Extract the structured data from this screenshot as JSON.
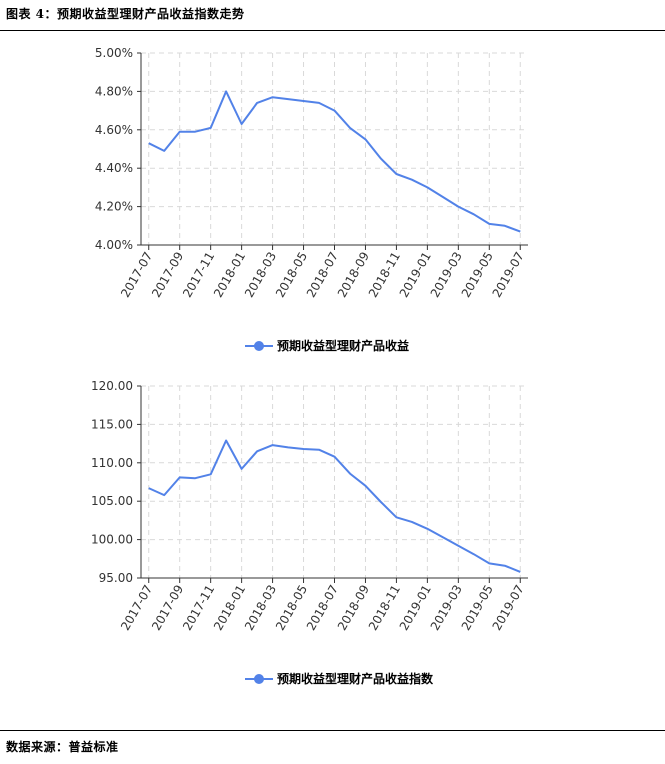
{
  "header": {
    "title": "图表 4：预期收益型理财产品收益指数走势"
  },
  "footer": {
    "source": "数据来源：普益标准"
  },
  "colors": {
    "series": "#5282E8",
    "grid": "#d9d9d9",
    "axis": "#333333"
  },
  "chart_data": [
    {
      "type": "line",
      "x": [
        "2017-07",
        "2017-08",
        "2017-09",
        "2017-10",
        "2017-11",
        "2017-12",
        "2018-01",
        "2018-02",
        "2018-03",
        "2018-04",
        "2018-05",
        "2018-06",
        "2018-07",
        "2018-08",
        "2018-09",
        "2018-10",
        "2018-11",
        "2018-12",
        "2019-01",
        "2019-02",
        "2019-03",
        "2019-04",
        "2019-05",
        "2019-06",
        "2019-07"
      ],
      "xticks": [
        "2017-07",
        "2017-09",
        "2017-11",
        "2018-01",
        "2018-03",
        "2018-05",
        "2018-07",
        "2018-09",
        "2018-11",
        "2019-01",
        "2019-03",
        "2019-05",
        "2019-07"
      ],
      "yticks": [
        "4.00%",
        "4.20%",
        "4.40%",
        "4.60%",
        "4.80%",
        "5.00%"
      ],
      "ylim": [
        4.0,
        5.0
      ],
      "grid": true,
      "legend_position": "bottom-center",
      "series": [
        {
          "name": "预期收益型理财产品收益",
          "values": [
            4.53,
            4.49,
            4.59,
            4.59,
            4.61,
            4.8,
            4.63,
            4.74,
            4.77,
            4.76,
            4.75,
            4.74,
            4.7,
            4.61,
            4.55,
            4.45,
            4.37,
            4.34,
            4.3,
            4.25,
            4.2,
            4.16,
            4.11,
            4.1,
            4.07
          ]
        }
      ]
    },
    {
      "type": "line",
      "x": [
        "2017-07",
        "2017-08",
        "2017-09",
        "2017-10",
        "2017-11",
        "2017-12",
        "2018-01",
        "2018-02",
        "2018-03",
        "2018-04",
        "2018-05",
        "2018-06",
        "2018-07",
        "2018-08",
        "2018-09",
        "2018-10",
        "2018-11",
        "2018-12",
        "2019-01",
        "2019-02",
        "2019-03",
        "2019-04",
        "2019-05",
        "2019-06",
        "2019-07"
      ],
      "xticks": [
        "2017-07",
        "2017-09",
        "2017-11",
        "2018-01",
        "2018-03",
        "2018-05",
        "2018-07",
        "2018-09",
        "2018-11",
        "2019-01",
        "2019-03",
        "2019-05",
        "2019-07"
      ],
      "yticks": [
        "95.00",
        "100.00",
        "105.00",
        "110.00",
        "115.00",
        "120.00"
      ],
      "ylim": [
        95,
        120
      ],
      "grid": true,
      "legend_position": "bottom-center",
      "series": [
        {
          "name": "预期收益型理财产品收益指数",
          "values": [
            106.7,
            105.8,
            108.1,
            108.0,
            108.5,
            112.9,
            109.2,
            111.5,
            112.3,
            112.0,
            111.8,
            111.7,
            110.8,
            108.6,
            107.0,
            104.9,
            102.9,
            102.3,
            101.4,
            100.3,
            99.2,
            98.1,
            96.9,
            96.6,
            95.8
          ]
        }
      ]
    }
  ]
}
